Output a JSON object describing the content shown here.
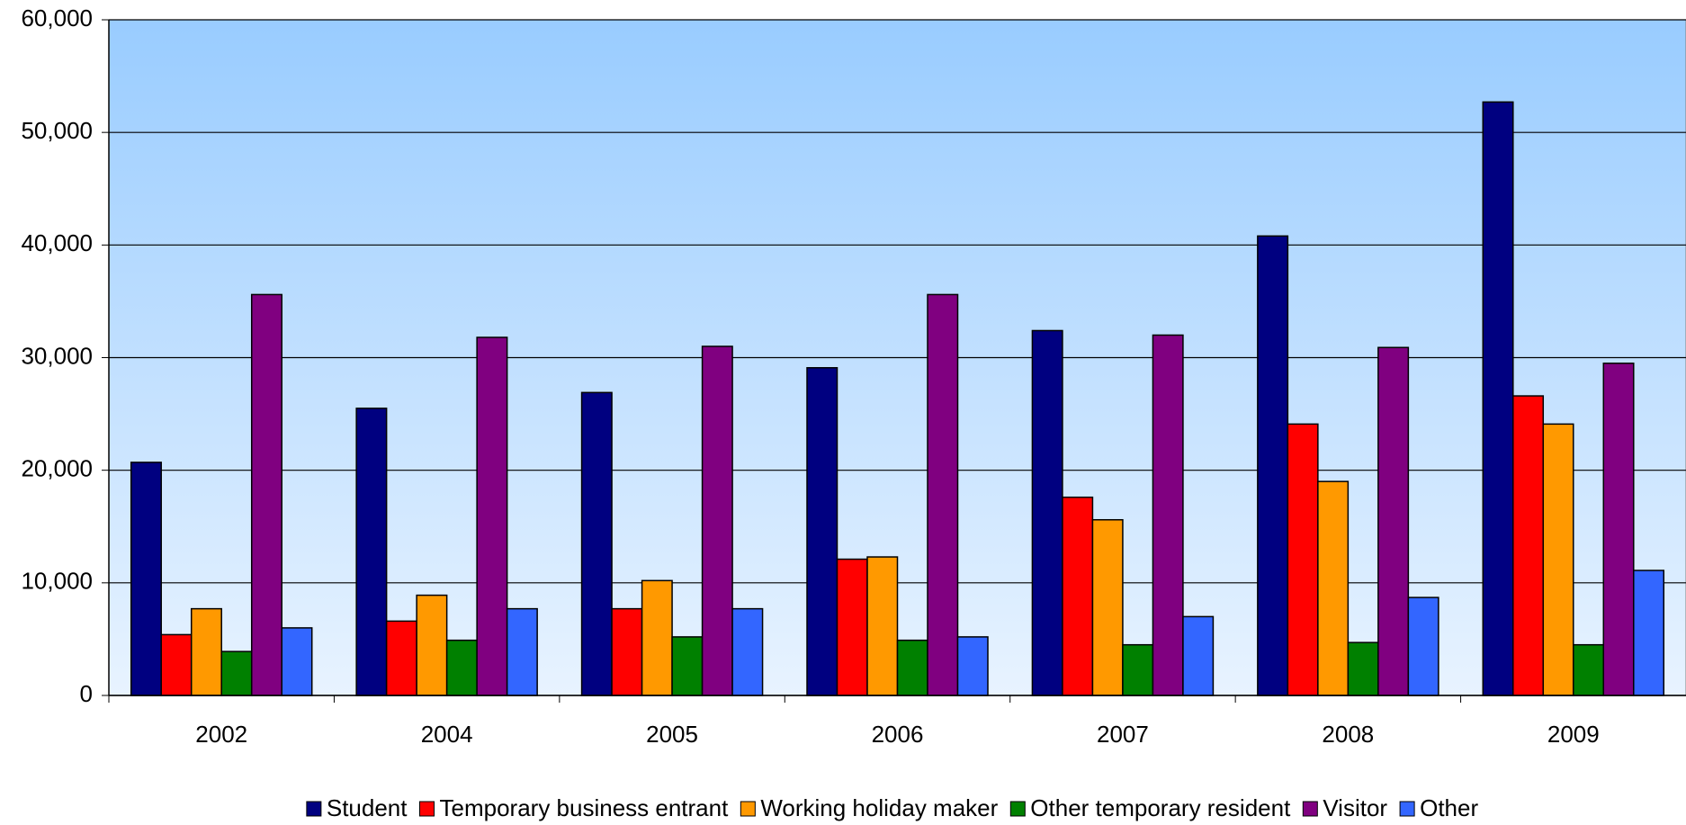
{
  "chart_data": {
    "type": "bar",
    "categories": [
      "2002",
      "2004",
      "2005",
      "2006",
      "2007",
      "2008",
      "2009"
    ],
    "series": [
      {
        "name": "Student",
        "color": "#000080",
        "values": [
          20700,
          25500,
          26900,
          29100,
          32400,
          40800,
          52700
        ]
      },
      {
        "name": "Temporary business entrant",
        "color": "#ff0000",
        "values": [
          5400,
          6600,
          7700,
          12100,
          17600,
          24100,
          26600
        ]
      },
      {
        "name": "Working holiday maker",
        "color": "#ff9900",
        "values": [
          7700,
          8900,
          10200,
          12300,
          15600,
          19000,
          24100
        ]
      },
      {
        "name": "Other temporary resident",
        "color": "#008000",
        "values": [
          3900,
          4900,
          5200,
          4900,
          4500,
          4700,
          4500
        ]
      },
      {
        "name": "Visitor",
        "color": "#800080",
        "values": [
          35600,
          31800,
          31000,
          35600,
          32000,
          30900,
          29500
        ]
      },
      {
        "name": "Other",
        "color": "#3366ff",
        "values": [
          6000,
          7700,
          7700,
          5200,
          7000,
          8700,
          11100
        ]
      }
    ],
    "ylim": [
      0,
      60000
    ],
    "yticks": [
      0,
      {
        "value": 10000,
        "label": "10,000"
      },
      {
        "value": 20000,
        "label": "20,000"
      },
      {
        "value": 30000,
        "label": "30,000"
      },
      {
        "value": 40000,
        "label": "40,000"
      },
      {
        "value": 50000,
        "label": "50,000"
      },
      {
        "value": 60000,
        "label": "60,000"
      }
    ],
    "grid": true,
    "legend": "bottom"
  }
}
